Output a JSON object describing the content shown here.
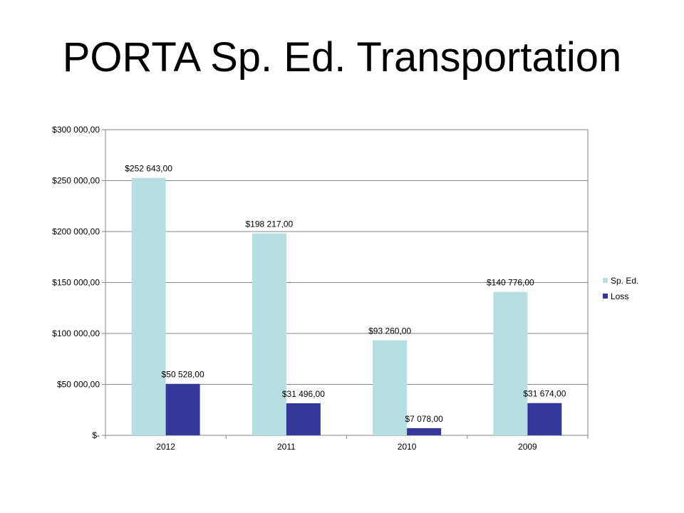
{
  "slide": {
    "title": "PORTA Sp. Ed. Transportation"
  },
  "chart_data": {
    "type": "bar",
    "title": "",
    "xlabel": "",
    "ylabel": "",
    "categories": [
      "2012",
      "2011",
      "2010",
      "2009"
    ],
    "series": [
      {
        "name": "Sp. Ed.",
        "color": "#b7dee1",
        "values": [
          252643,
          198217,
          93260,
          140776
        ],
        "labels": [
          "$252 643,00",
          "$198 217,00",
          "$93 260,00",
          "$140 776,00"
        ]
      },
      {
        "name": "Loss",
        "color": "#35389b",
        "values": [
          50528,
          31496,
          7078,
          31674
        ],
        "labels": [
          "$50 528,00",
          "$31 496,00",
          "$7 078,00",
          "$31 674,00"
        ]
      }
    ],
    "ylim": [
      0,
      300000
    ],
    "yticks": [
      0,
      50000,
      100000,
      150000,
      200000,
      250000,
      300000
    ],
    "ytick_labels": [
      "$-",
      "$50 000,00",
      "$100 000,00",
      "$150 000,00",
      "$200 000,00",
      "$250 000,00",
      "$300 000,00"
    ],
    "grid": true,
    "legend_position": "right"
  }
}
